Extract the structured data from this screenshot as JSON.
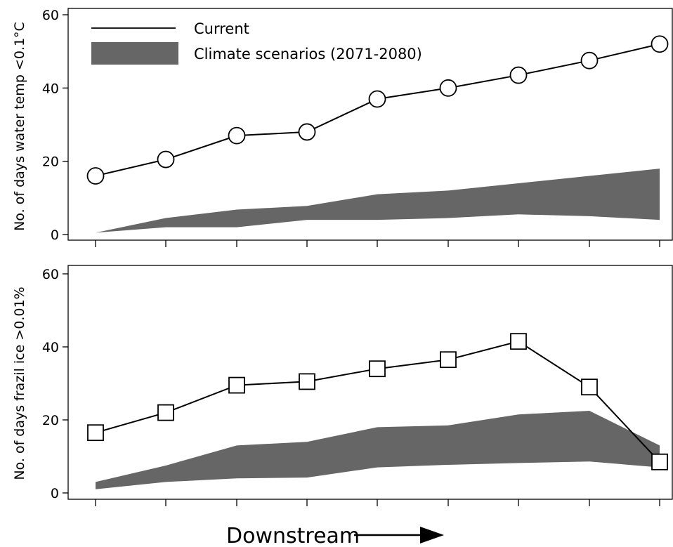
{
  "legend": {
    "current_label": "Current",
    "scenario_label": "Climate scenarios (2071-2080)"
  },
  "xcaption": "Downstream",
  "colors": {
    "line": "#000000",
    "band": "#666666",
    "marker_fill": "#ffffff"
  },
  "chart_data": [
    {
      "type": "line",
      "panel": "top",
      "ylabel": "No. of days water temp <0.1°C",
      "ylim": [
        0,
        60
      ],
      "yticks": [
        0,
        20,
        40,
        60
      ],
      "x": [
        1,
        2,
        3,
        4,
        5,
        6,
        7,
        8,
        9
      ],
      "xtick_labels": [],
      "marker": "circle",
      "series": [
        {
          "name": "Current",
          "values": [
            16,
            20.5,
            27,
            28,
            37,
            40,
            43.5,
            47.5,
            52
          ]
        }
      ],
      "band": {
        "name": "Climate scenarios (2071-2080)",
        "lower": [
          0.5,
          2,
          2,
          4,
          4,
          4.5,
          5.5,
          5,
          4
        ],
        "upper": [
          0.5,
          4.5,
          6.8,
          7.8,
          11,
          12,
          14,
          16,
          18
        ]
      },
      "grid": false,
      "legend_position": "top-left"
    },
    {
      "type": "line",
      "panel": "bottom",
      "ylabel": "No. of days frazil ice >0.01%",
      "ylim": [
        0,
        60
      ],
      "yticks": [
        0,
        20,
        40,
        60
      ],
      "x": [
        1,
        2,
        3,
        4,
        5,
        6,
        7,
        8,
        9
      ],
      "xtick_labels": [],
      "marker": "square",
      "series": [
        {
          "name": "Current",
          "values": [
            16.5,
            22,
            29.5,
            30.5,
            34,
            36.5,
            41.5,
            29,
            8.5
          ]
        }
      ],
      "band": {
        "name": "Climate scenarios (2071-2080)",
        "lower": [
          1,
          3,
          4,
          4.2,
          7,
          7.7,
          8.2,
          8.6,
          7
        ],
        "upper": [
          3,
          7.5,
          13,
          14,
          18,
          18.5,
          21.5,
          22.5,
          13
        ]
      },
      "grid": false,
      "legend_position": "none"
    }
  ]
}
